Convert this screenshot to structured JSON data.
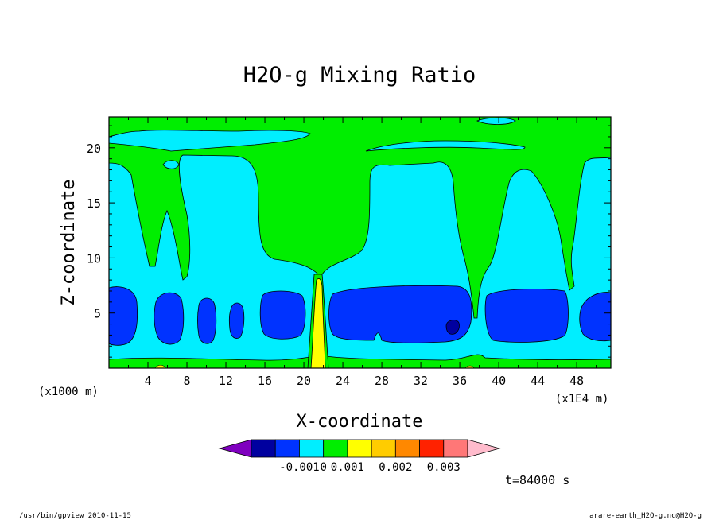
{
  "chart_data": {
    "type": "heatmap",
    "title": "H2O-g Mixing Ratio",
    "xlabel": "X-coordinate",
    "ylabel": "Z-coordinate",
    "x_unit_left": "(x1000 m)",
    "x_unit_right": "(x1E4 m)",
    "xlim": [
      0,
      51.5
    ],
    "ylim": [
      0,
      22.8
    ],
    "x_ticks": [
      4,
      8,
      12,
      16,
      20,
      24,
      28,
      32,
      36,
      40,
      44,
      48
    ],
    "y_ticks": [
      5,
      10,
      15,
      20
    ],
    "colorbar": {
      "colors": [
        "#7f00bf",
        "#00009f",
        "#0033ff",
        "#00eeff",
        "#00ee00",
        "#ffff00",
        "#ffcc00",
        "#ff8800",
        "#ff2200",
        "#ff7777",
        "#ffbbcc"
      ],
      "labels": [
        "-0.001",
        "0",
        "0.001",
        "0.002",
        "0.003"
      ]
    },
    "time_label": "t=84000 s"
  },
  "footer": {
    "left": "/usr/bin/gpview   2010-11-15",
    "right": "arare-earth_H2O-g.nc@H2O-g"
  }
}
